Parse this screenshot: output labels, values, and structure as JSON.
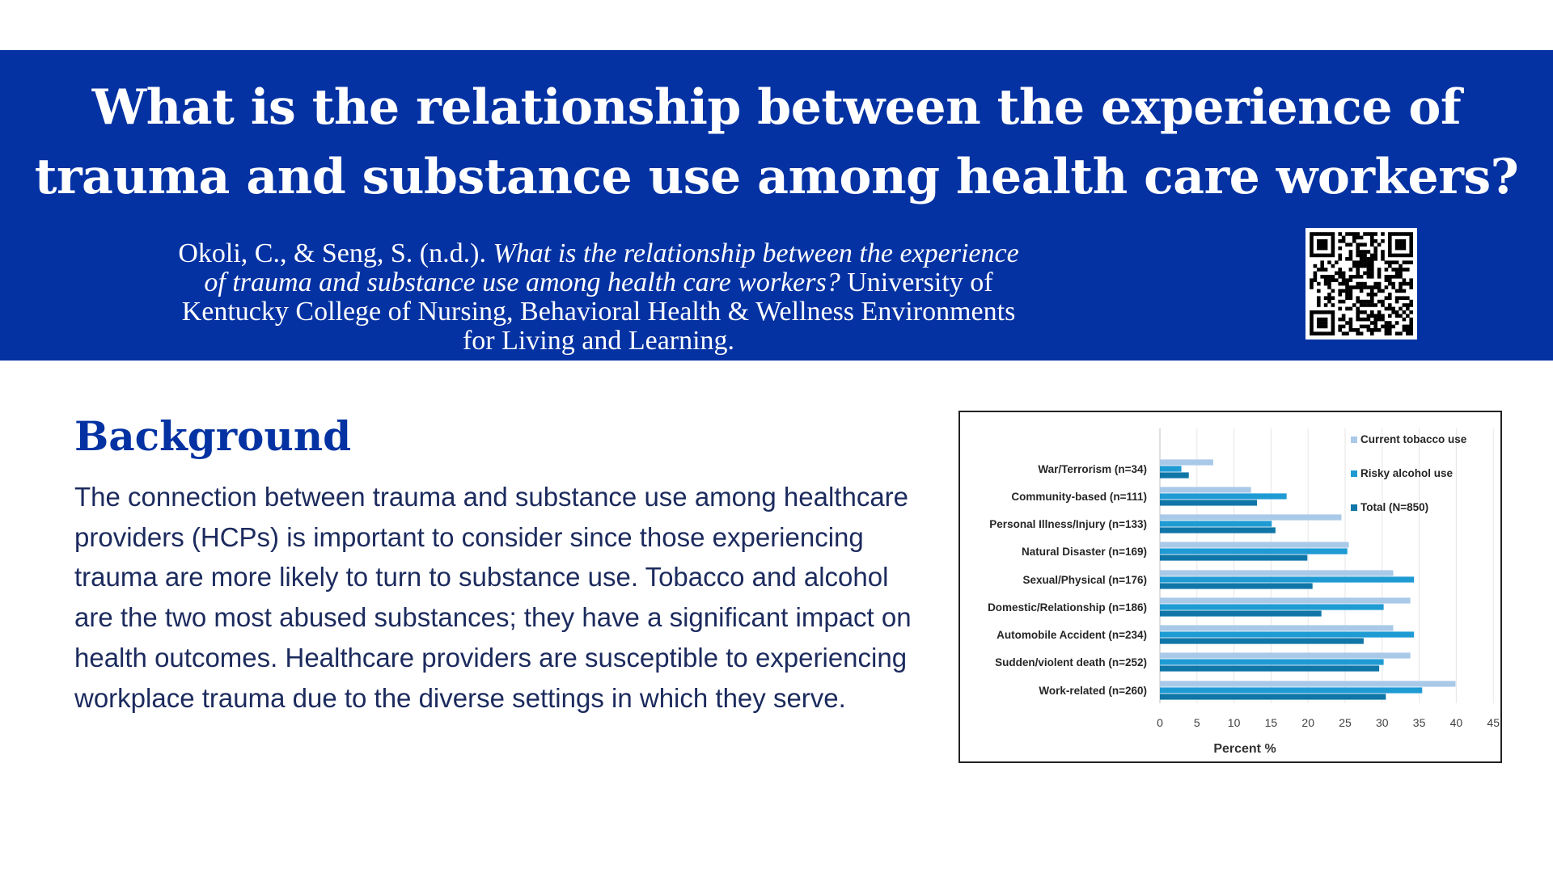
{
  "header": {
    "title_line1": "What is the relationship between the experience of",
    "title_line2": "trauma and substance use among health care workers?",
    "citation_authors": "Okoli, C., & Seng, S. (n.d.). ",
    "citation_title": "What is the relationship between the experience of trauma and substance use among health care workers?",
    "citation_source": " University of Kentucky College of Nursing, Behavioral Health & Wellness Environments for Living and Learning."
  },
  "qr_code": {
    "icon": "qr-code-icon"
  },
  "background": {
    "heading": "Background",
    "body": "The connection between trauma and substance use among healthcare providers (HCPs) is important to consider since those experiencing trauma are more likely to turn to substance use. Tobacco and alcohol are the two most abused substances; they have a significant impact on health outcomes. Healthcare providers are susceptible to experiencing workplace trauma due to the diverse settings in which they serve."
  },
  "chart_data": {
    "type": "bar",
    "orientation": "horizontal",
    "categories": [
      "War/Terrorism (n=34)",
      "Community-based (n=111)",
      "Personal Illness/Injury (n=133)",
      "Natural Disaster (n=169)",
      "Sexual/Physical (n=176)",
      "Domestic/Relationship (n=186)",
      "Automobile Accident (n=234)",
      "Sudden/violent death (n=252)",
      "Work-related (n=260)"
    ],
    "series": [
      {
        "name": "Current tobacco use",
        "color": "#a9c9e8",
        "values": [
          7.2,
          12.3,
          24.5,
          25.5,
          31.5,
          33.8,
          31.5,
          33.8,
          39.9
        ]
      },
      {
        "name": "Risky alcohol use",
        "color": "#1f9bd4",
        "values": [
          2.9,
          17.1,
          15.1,
          25.3,
          34.3,
          30.2,
          34.3,
          30.2,
          35.4
        ]
      },
      {
        "name": "Total (N=850)",
        "color": "#1076a8",
        "values": [
          3.9,
          13.1,
          15.6,
          19.9,
          20.6,
          21.8,
          27.5,
          29.6,
          30.5
        ]
      }
    ],
    "xlabel": "Percent %",
    "ylabel": "",
    "xlim": [
      0,
      45
    ],
    "xticks": [
      0,
      5,
      10,
      15,
      20,
      25,
      30,
      35,
      40,
      45
    ],
    "grid": true,
    "legend_position": "top-right"
  }
}
